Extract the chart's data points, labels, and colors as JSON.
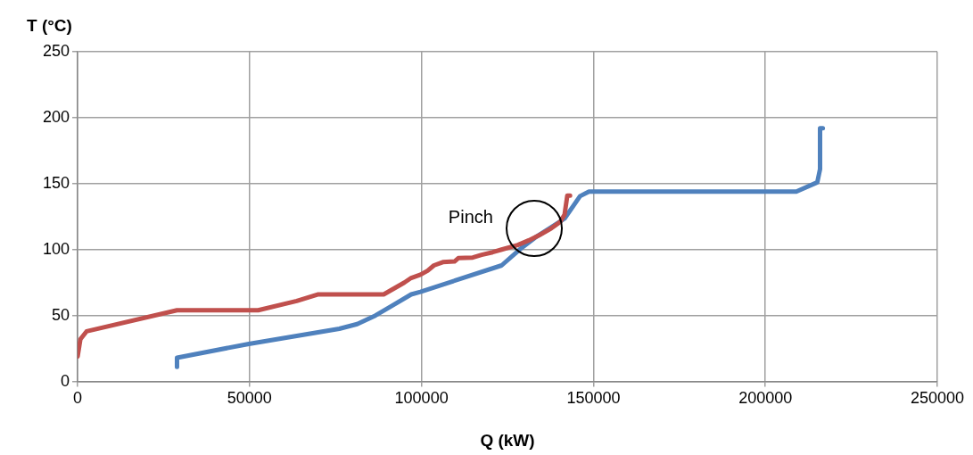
{
  "chart_data": {
    "type": "line",
    "xlabel": "Q (kW)",
    "ylabel": "T (°C)",
    "xlim": [
      0,
      250000
    ],
    "xticks": [
      0,
      50000,
      100000,
      150000,
      200000,
      250000
    ],
    "ylim": [
      0,
      250
    ],
    "yticks": [
      0,
      50,
      100,
      150,
      200,
      250
    ],
    "grid": true,
    "legend": false,
    "marker": "none",
    "line_style": "solid",
    "annotations": [
      "Pinch"
    ],
    "series": [
      {
        "color": "#c0504d",
        "x": [
          0,
          500,
          800,
          2600,
          28900,
          52500,
          63700,
          69800,
          89000,
          95000,
          97000,
          99700,
          101800,
          103600,
          106200,
          109600,
          110700,
          114900,
          117500,
          120700,
          123300,
          128000,
          131200,
          134300,
          137700,
          140300,
          141600,
          142400,
          143200
        ],
        "values": [
          19,
          27,
          32,
          38,
          54,
          54,
          61,
          66,
          66,
          75,
          78.5,
          81,
          84,
          88,
          90.5,
          91,
          93.5,
          94,
          96,
          98,
          100,
          103.5,
          107,
          111,
          116,
          121,
          126.5,
          141,
          141
        ]
      },
      {
        "color": "#4f81bd",
        "x": [
          28900,
          28900,
          49800,
          76100,
          81300,
          86600,
          91800,
          97000,
          99700,
          123300,
          128500,
          133000,
          141600,
          146100,
          148700,
          209000,
          215100,
          215900,
          215900,
          216700
        ],
        "values": [
          11,
          18,
          28.5,
          40,
          43.5,
          50,
          58,
          66,
          68,
          88,
          100,
          109,
          123.5,
          140.5,
          144,
          144,
          151,
          161,
          192,
          192
        ]
      }
    ]
  }
}
